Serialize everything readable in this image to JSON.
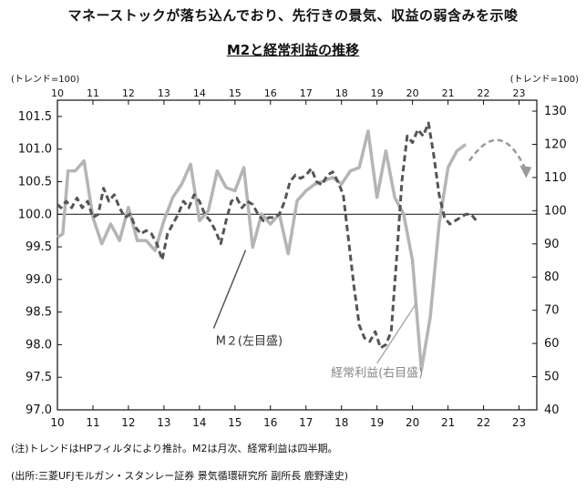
{
  "headline": "マネーストックが落ち込んでおり、先行きの景気、収益の弱含みを示唆",
  "chart_data": {
    "type": "line",
    "title": "M2と経常利益の推移",
    "left_axis_unit": "(トレンド=100)",
    "right_axis_unit": "(トレンド=100)",
    "x_ticks": [
      "10",
      "11",
      "12",
      "13",
      "14",
      "15",
      "16",
      "17",
      "18",
      "19",
      "20",
      "21",
      "22",
      "23"
    ],
    "xlim": [
      10,
      23.5
    ],
    "ylim_left": [
      97.0,
      101.75
    ],
    "ylim_right": [
      40,
      133.3
    ],
    "y_ticks_left": [
      "97.0",
      "97.5",
      "98.0",
      "98.5",
      "99.0",
      "99.5",
      "100.0",
      "100.5",
      "101.0",
      "101.5"
    ],
    "y_ticks_right": [
      "40",
      "50",
      "60",
      "70",
      "80",
      "90",
      "100",
      "110",
      "120",
      "130"
    ],
    "reference_line": 100.0,
    "grid": false,
    "series": [
      {
        "name": "M２(左目盛)",
        "axis": "left",
        "style": "dashed",
        "color": "#555555",
        "x": [
          10.0,
          10.1,
          10.25,
          10.4,
          10.55,
          10.7,
          10.85,
          11.0,
          11.15,
          11.3,
          11.45,
          11.6,
          11.75,
          11.9,
          12.05,
          12.2,
          12.35,
          12.5,
          12.65,
          12.8,
          12.95,
          13.1,
          13.25,
          13.4,
          13.55,
          13.7,
          13.85,
          14.0,
          14.15,
          14.3,
          14.45,
          14.6,
          14.75,
          14.9,
          15.05,
          15.2,
          15.35,
          15.5,
          15.65,
          15.8,
          15.95,
          16.1,
          16.25,
          16.4,
          16.55,
          16.7,
          16.85,
          17.0,
          17.15,
          17.3,
          17.45,
          17.6,
          17.75,
          17.9,
          18.05,
          18.2,
          18.35,
          18.5,
          18.65,
          18.8,
          18.95,
          19.1,
          19.25,
          19.4,
          19.55,
          19.7,
          19.85,
          20.0,
          20.15,
          20.3,
          20.45,
          20.6,
          20.75,
          20.9,
          21.05,
          21.2,
          21.35,
          21.5,
          21.65,
          21.8
        ],
        "values": [
          100.15,
          100.1,
          100.2,
          100.1,
          100.25,
          100.1,
          100.2,
          99.95,
          100.0,
          100.4,
          100.2,
          100.3,
          100.1,
          99.95,
          100.0,
          99.8,
          99.7,
          99.75,
          99.7,
          99.55,
          99.3,
          99.7,
          99.85,
          100.0,
          100.2,
          100.1,
          100.3,
          100.2,
          100.0,
          99.9,
          99.75,
          99.55,
          99.9,
          100.2,
          100.25,
          100.1,
          100.2,
          100.15,
          100.0,
          99.9,
          99.95,
          99.95,
          100.0,
          100.2,
          100.5,
          100.6,
          100.55,
          100.6,
          100.7,
          100.5,
          100.45,
          100.6,
          100.65,
          100.5,
          100.3,
          99.6,
          98.9,
          98.3,
          98.1,
          98.05,
          98.2,
          97.95,
          98.0,
          98.2,
          99.3,
          100.5,
          101.2,
          101.1,
          101.3,
          101.2,
          101.4,
          100.9,
          100.3,
          99.95,
          99.85,
          99.9,
          99.95,
          100.0,
          100.0,
          99.9
        ]
      },
      {
        "name": "経常利益(右目盛)",
        "axis": "right",
        "style": "solid",
        "color": "#b5b5b5",
        "x": [
          10.0,
          10.15,
          10.3,
          10.5,
          10.75,
          11.0,
          11.25,
          11.5,
          11.75,
          12.0,
          12.25,
          12.5,
          12.75,
          13.0,
          13.25,
          13.5,
          13.75,
          14.0,
          14.25,
          14.5,
          14.75,
          15.0,
          15.25,
          15.5,
          15.75,
          16.0,
          16.25,
          16.5,
          16.75,
          17.0,
          17.25,
          17.5,
          17.75,
          18.0,
          18.25,
          18.5,
          18.75,
          19.0,
          19.25,
          19.5,
          19.75,
          20.0,
          20.25,
          20.5,
          20.75,
          21.0,
          21.25,
          21.5
        ],
        "values": [
          92,
          93,
          112,
          112,
          115,
          98,
          90,
          96,
          91,
          101,
          91,
          91,
          88,
          97,
          104,
          108,
          114,
          97,
          100,
          112,
          107,
          106,
          113,
          89,
          99,
          96,
          99,
          87,
          103,
          106,
          108,
          109,
          110,
          108,
          112,
          113,
          124,
          104,
          118,
          104,
          99,
          85,
          52,
          68,
          96,
          113,
          118,
          120
        ]
      }
    ],
    "arrow_label": "",
    "annotations": [
      {
        "text": "M２(左目盛)",
        "target": "M２(左目盛)"
      },
      {
        "text": "経常利益(右目盛)",
        "target": "経常利益(右目盛)"
      }
    ]
  },
  "note": "(注)トレンドはHPフィルタにより推計。M2は月次、経常利益は四半期。",
  "source": "(出所:三菱UFJモルガン・スタンレー証券 景気循環研究所 副所長 鹿野達史)",
  "colors": {
    "m2": "#555555",
    "profit": "#b5b5b5",
    "axis": "#111111",
    "arrow": "#9a9a9a"
  }
}
